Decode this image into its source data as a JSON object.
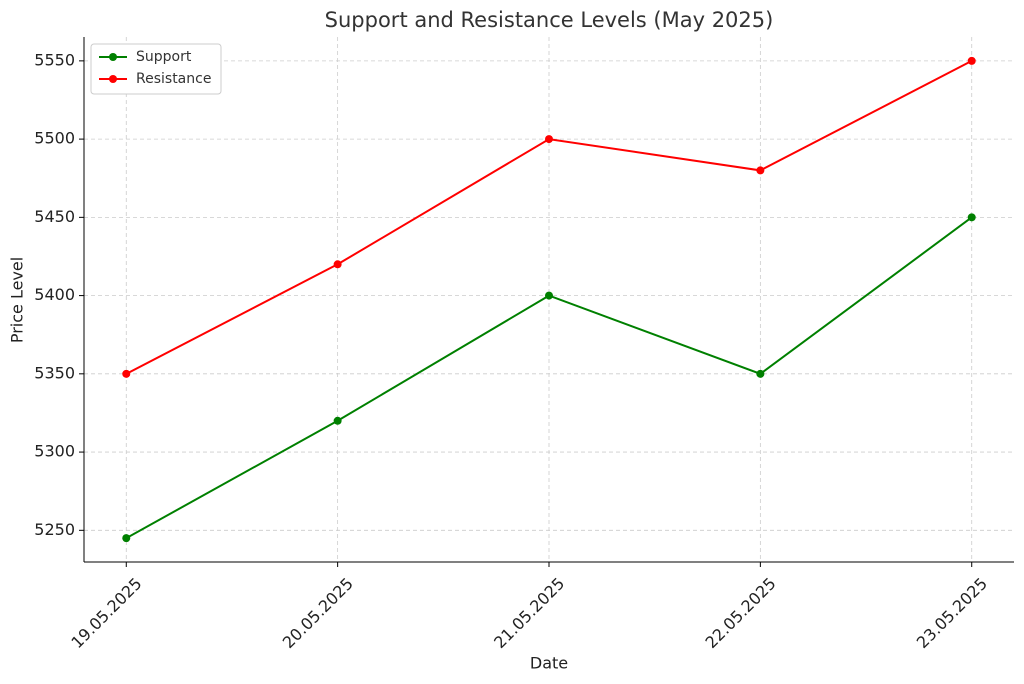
{
  "chart_data": {
    "type": "line",
    "title": "Support and Resistance Levels (May 2025)",
    "x_label": "Date",
    "y_label": "Price Level",
    "categories": [
      "19.05.2025",
      "20.05.2025",
      "21.05.2025",
      "22.05.2025",
      "23.05.2025"
    ],
    "series": [
      {
        "name": "Support",
        "color": "#008000",
        "values": [
          5245,
          5320,
          5400,
          5350,
          5450
        ]
      },
      {
        "name": "Resistance",
        "color": "#ff0000",
        "values": [
          5350,
          5420,
          5500,
          5480,
          5550
        ]
      }
    ],
    "ylim": [
      5229.75,
      5565.25
    ],
    "yticks": [
      5250,
      5300,
      5350,
      5400,
      5450,
      5500,
      5550
    ],
    "grid": true,
    "legend": "upper-left"
  }
}
